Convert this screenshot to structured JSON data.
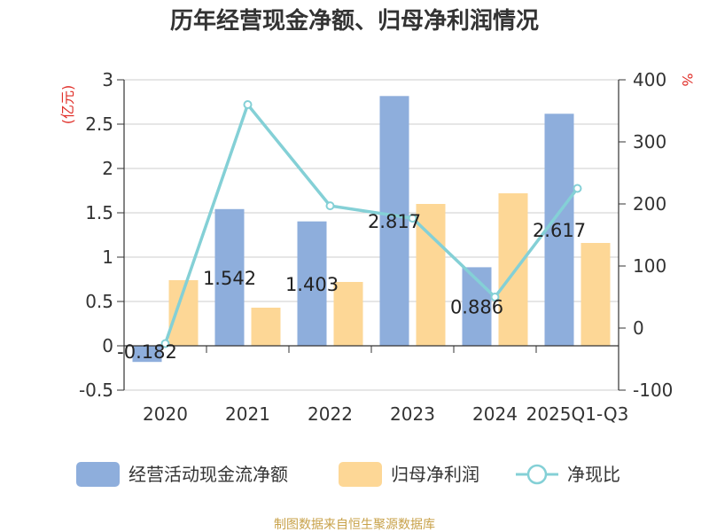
{
  "chart_data": {
    "type": "bar",
    "title": "历年经营现金净额、归母净利润情况",
    "categories": [
      "2020",
      "2021",
      "2022",
      "2023",
      "2024",
      "2025Q1-Q3"
    ],
    "series": [
      {
        "name": "经营活动现金流净额",
        "type": "bar",
        "axis": "left",
        "color": "#8eaedc",
        "values": [
          -0.182,
          1.542,
          1.403,
          2.817,
          0.886,
          2.617
        ],
        "labels": [
          "-0.182",
          "1.542",
          "1.403",
          "2.817",
          "0.886",
          "2.617"
        ]
      },
      {
        "name": "归母净利润",
        "type": "bar",
        "axis": "left",
        "color": "#fdd796",
        "values": [
          0.74,
          0.43,
          0.72,
          1.6,
          1.72,
          1.16
        ]
      },
      {
        "name": "净现比",
        "type": "line",
        "axis": "right",
        "color": "#84d0d6",
        "values": [
          -25,
          360,
          197,
          177,
          50,
          225
        ]
      }
    ],
    "y_left": {
      "unit": "(亿元)",
      "min": -0.5,
      "max": 3,
      "ticks": [
        "-0.5",
        "0",
        "0.5",
        "1",
        "1.5",
        "2",
        "2.5",
        "3"
      ]
    },
    "y_right": {
      "unit": "%",
      "min": -100,
      "max": 400,
      "ticks": [
        "-100",
        "0",
        "100",
        "200",
        "300",
        "400"
      ]
    },
    "legend_position": "bottom"
  },
  "source": "制图数据来自恒生聚源数据库"
}
